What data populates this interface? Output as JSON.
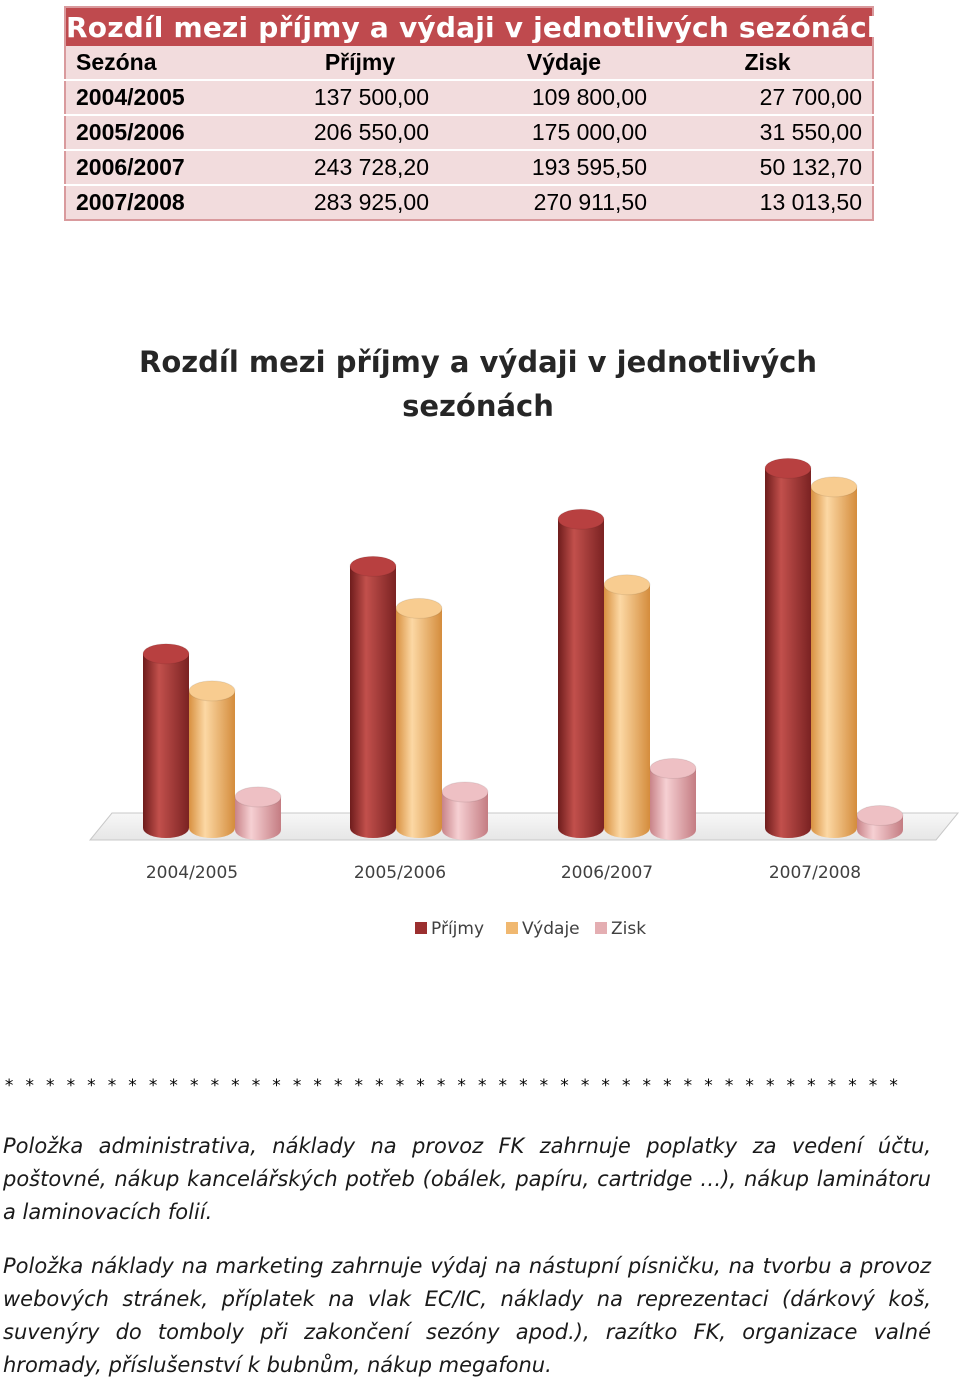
{
  "table": {
    "title": "Rozdíl mezi příjmy a výdaji v jednotlivých sezónách",
    "headers": [
      "Sezóna",
      "Příjmy",
      "Výdaje",
      "Zisk"
    ],
    "rows": [
      [
        "2004/2005",
        "137 500,00",
        "109 800,00",
        "27 700,00"
      ],
      [
        "2005/2006",
        "206 550,00",
        "175 000,00",
        "31 550,00"
      ],
      [
        "2006/2007",
        "243 728,20",
        "193 595,50",
        "50 132,70"
      ],
      [
        "2007/2008",
        "283 925,00",
        "270 911,50",
        "13 013,50"
      ]
    ],
    "colors": {
      "title_bg": "#bf4a4e",
      "row_bg": "#f2dcdd",
      "border": "#d99a9d"
    }
  },
  "chart_data": {
    "type": "bar",
    "title": "Rozdíl mezi příjmy a výdaji v jednotlivých sezónách",
    "categories": [
      "2004/2005",
      "2005/2006",
      "2006/2007",
      "2007/2008"
    ],
    "series": [
      {
        "name": "Příjmy",
        "values": [
          137500,
          206550,
          243728.2,
          283925
        ],
        "color": "#9b2f2f"
      },
      {
        "name": "Výdaje",
        "values": [
          109800,
          175000,
          193595.5,
          270911.5
        ],
        "color": "#f0b870"
      },
      {
        "name": "Zisk",
        "values": [
          27700,
          31550,
          50132.7,
          13013.5
        ],
        "color": "#e4aeb2"
      }
    ],
    "grid": false,
    "legend": "bottom",
    "style": "3d-cylinder"
  },
  "separator": "* * * * * * * * * * * * * * * * * * * * * * * * * * * * * * * * * * * * * * * * * * * * * * * * * * * * * * * * * * * * * * * *",
  "paragraphs": [
    "Položka administrativa, náklady na provoz FK zahrnuje poplatky za vedení účtu, poštovné, nákup kancelářských potřeb (obálek, papíru, cartridge …), nákup laminátoru a laminovacích folií.",
    "Položka náklady na marketing zahrnuje výdaj na nástupní písničku, na tvorbu a provoz webových stránek, příplatek na vlak EC/IC, náklady na reprezentaci (dárkový koš, suvenýry do tomboly při zakončení sezóny apod.), razítko FK, organizace valné hromady, příslušenství k bubnům, nákup megafonu."
  ]
}
